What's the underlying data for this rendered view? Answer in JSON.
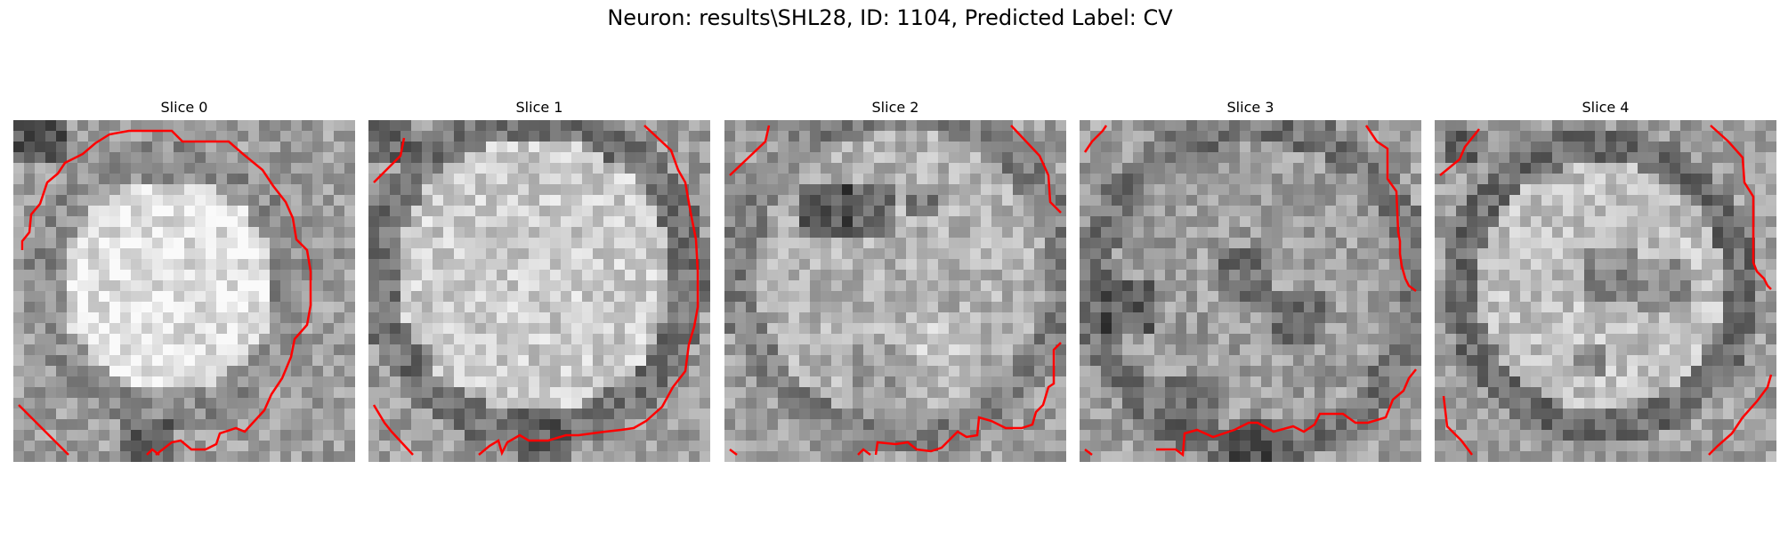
{
  "figure": {
    "title": "Neuron: results\\SHL28, ID: 1104, Predicted Label: CV"
  },
  "colors": {
    "contour": "#ff0000",
    "background": "#ffffff"
  },
  "slices": [
    {
      "title": "Slice 0",
      "dark_regions": [
        "border-ring",
        "top-left-corner",
        "bottom-edge"
      ],
      "bright_center": true
    },
    {
      "title": "Slice 1",
      "dark_regions": [
        "left-edge",
        "bottom-edge",
        "top-left-corner"
      ],
      "bright_center": true
    },
    {
      "title": "Slice 2",
      "dark_regions": [
        "upper-center-band",
        "bottom-edge"
      ],
      "bright_center": false
    },
    {
      "title": "Slice 3",
      "dark_regions": [
        "left-side",
        "center",
        "bottom-edge"
      ],
      "bright_center": false
    },
    {
      "title": "Slice 4",
      "dark_regions": [
        "border-ring",
        "center-right",
        "bottom-edge"
      ],
      "bright_center": true
    }
  ]
}
